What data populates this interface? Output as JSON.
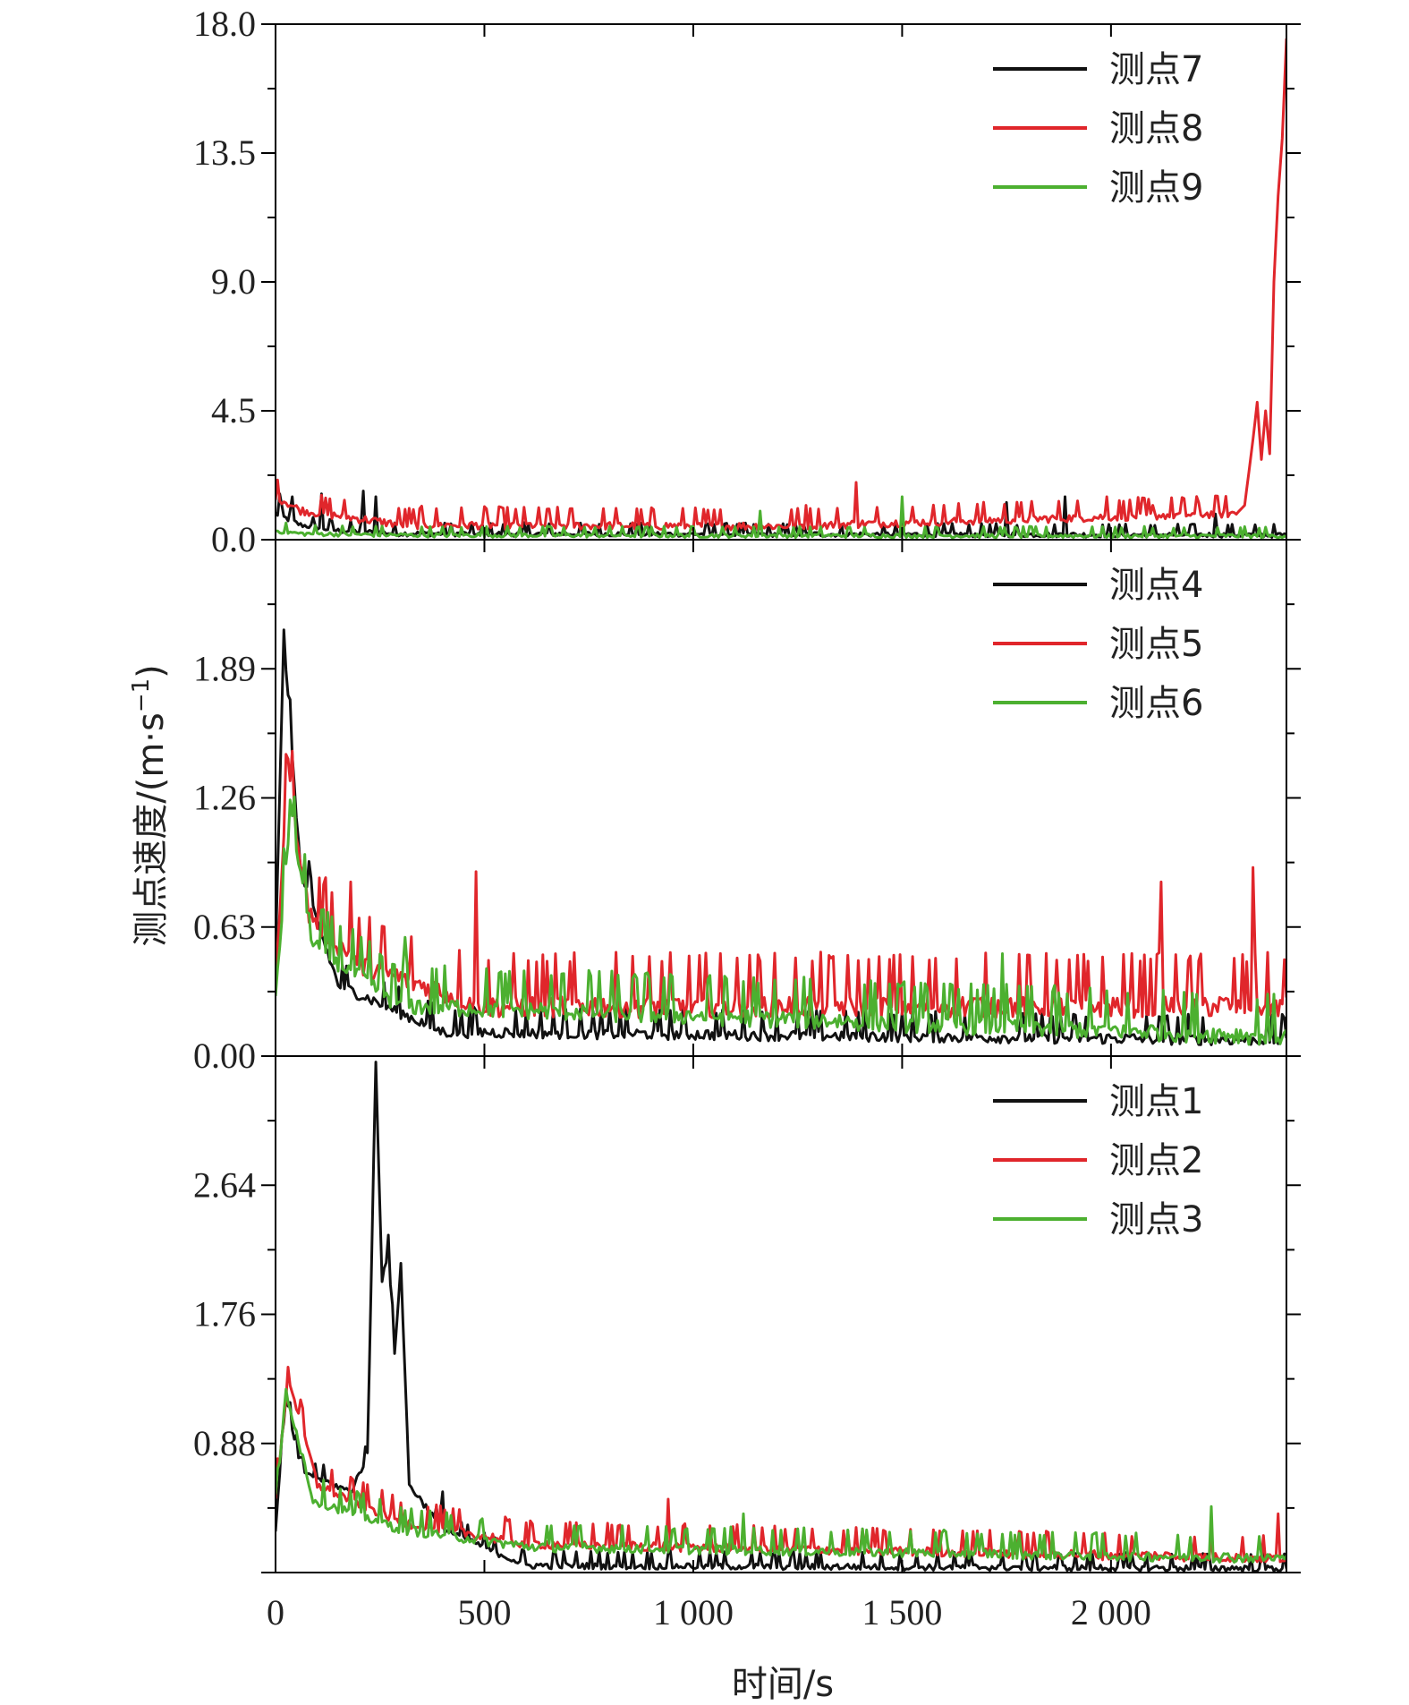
{
  "chart_data": {
    "type": "line",
    "ylabel": "测点速度/(m·s",
    "ylabel_sup": "−1",
    "ylabel_close": ")",
    "xlabel": "时间/s",
    "xlim": [
      0,
      2420
    ],
    "xticks": [
      0,
      500,
      1000,
      1500,
      2000
    ],
    "xtick_labels": [
      "0",
      "500",
      "1 000",
      "1 500",
      "2 000"
    ],
    "colors": {
      "black": "#111111",
      "red": "#e0262b",
      "green": "#4cb030"
    },
    "panels": [
      {
        "name": "panel-top",
        "ylim": [
          0,
          18.0
        ],
        "yticks": [
          0,
          4.5,
          9.0,
          13.5,
          18.0
        ],
        "ytick_labels": [
          "0.0",
          "4.5",
          "9.0",
          "13.5",
          "18.0"
        ],
        "legend_position": "top-right",
        "series": [
          {
            "name": "测点7",
            "color": "#111111",
            "baseline": 0.15,
            "noise": 0.3,
            "spikes": [
              [
                10,
                1.6
              ],
              [
                40,
                1.5
              ],
              [
                110,
                1.6
              ],
              [
                210,
                1.7
              ],
              [
                240,
                1.5
              ],
              [
                1750,
                1.3
              ],
              [
                1890,
                1.5
              ],
              [
                2250,
                0.9
              ]
            ],
            "x": [
              0,
              60,
              150,
              300,
              2420
            ],
            "y": [
              0.9,
              0.5,
              0.3,
              0.2,
              0.15
            ]
          },
          {
            "name": "测点8",
            "color": "#e0262b",
            "baseline": 0.35,
            "noise": 0.5,
            "spikes": [
              [
                1390,
                2.0
              ],
              [
                1270,
                1.2
              ],
              [
                1990,
                1.5
              ],
              [
                2100,
                1.2
              ],
              [
                2210,
                1.3
              ]
            ],
            "x": [
              0,
              60,
              300,
              1200,
              2300,
              2320,
              2340,
              2350,
              2360,
              2370,
              2380,
              2390,
              2400,
              2410,
              2420
            ],
            "y": [
              1.5,
              1.0,
              0.5,
              0.45,
              0.9,
              1.2,
              3.5,
              4.8,
              2.8,
              4.5,
              3.0,
              9.0,
              12.0,
              14.0,
              17.5
            ]
          },
          {
            "name": "测点9",
            "color": "#4cb030",
            "baseline": 0.1,
            "noise": 0.25,
            "spikes": [
              [
                1500,
                1.5
              ],
              [
                1160,
                1.0
              ]
            ],
            "x": [
              0,
              60,
              300,
              2420
            ],
            "y": [
              0.3,
              0.2,
              0.15,
              0.12
            ]
          }
        ]
      },
      {
        "name": "panel-middle",
        "ylim": [
          0,
          2.52
        ],
        "yticks": [
          0,
          0.63,
          1.26,
          1.89
        ],
        "ytick_labels": [
          "0.00",
          "0.63",
          "1.26",
          "1.89"
        ],
        "legend_position": "top-right",
        "series": [
          {
            "name": "测点4",
            "color": "#111111",
            "baseline": 0.05,
            "noise": 0.12,
            "spikes": [
              [
                20,
                2.08
              ],
              [
                80,
                0.95
              ]
            ],
            "x": [
              0,
              20,
              60,
              150,
              400,
              2420
            ],
            "y": [
              0.5,
              2.05,
              0.9,
              0.35,
              0.12,
              0.08
            ]
          },
          {
            "name": "测点5",
            "color": "#e0262b",
            "baseline": 0.15,
            "noise": 0.25,
            "spikes": [
              [
                30,
                1.45
              ],
              [
                180,
                0.85
              ],
              [
                480,
                0.9
              ],
              [
                2120,
                0.85
              ],
              [
                2340,
                0.92
              ]
            ],
            "x": [
              0,
              30,
              80,
              200,
              500,
              2420
            ],
            "y": [
              0.4,
              1.4,
              0.7,
              0.45,
              0.25,
              0.25
            ]
          },
          {
            "name": "测点6",
            "color": "#4cb030",
            "baseline": 0.1,
            "noise": 0.2,
            "spikes": [
              [
                35,
                1.25
              ],
              [
                310,
                0.58
              ],
              [
                1740,
                0.5
              ]
            ],
            "x": [
              0,
              35,
              90,
              300,
              2420
            ],
            "y": [
              0.3,
              1.2,
              0.55,
              0.25,
              0.1
            ]
          }
        ]
      },
      {
        "name": "panel-bottom",
        "ylim": [
          0,
          3.52
        ],
        "yticks": [
          0,
          0.88,
          1.76,
          2.64
        ],
        "ytick_labels": [
          "",
          "0.88",
          "1.76",
          "2.64"
        ],
        "legend_position": "top-right",
        "series": [
          {
            "name": "测点1",
            "color": "#111111",
            "baseline": 0.03,
            "noise": 0.1,
            "spikes": [
              [
                240,
                3.48
              ],
              [
                400,
                0.55
              ]
            ],
            "x": [
              0,
              25,
              60,
              180,
              220,
              240,
              255,
              270,
              285,
              300,
              320,
              400,
              600,
              2420
            ],
            "y": [
              0.3,
              1.2,
              0.7,
              0.55,
              0.8,
              3.48,
              2.0,
              2.2,
              1.5,
              2.1,
              0.6,
              0.3,
              0.05,
              0.03
            ]
          },
          {
            "name": "测点2",
            "color": "#e0262b",
            "baseline": 0.08,
            "noise": 0.15,
            "spikes": [
              [
                30,
                1.4
              ],
              [
                940,
                0.5
              ],
              [
                2400,
                0.4
              ]
            ],
            "x": [
              0,
              30,
              100,
              300,
              600,
              2420
            ],
            "y": [
              0.5,
              1.35,
              0.6,
              0.35,
              0.2,
              0.1
            ]
          },
          {
            "name": "测点3",
            "color": "#4cb030",
            "baseline": 0.08,
            "noise": 0.15,
            "spikes": [
              [
                25,
                1.25
              ],
              [
                1120,
                0.4
              ],
              [
                2240,
                0.45
              ]
            ],
            "x": [
              0,
              25,
              90,
              300,
              600,
              2420
            ],
            "y": [
              0.4,
              1.25,
              0.5,
              0.3,
              0.18,
              0.1
            ]
          }
        ]
      }
    ]
  }
}
